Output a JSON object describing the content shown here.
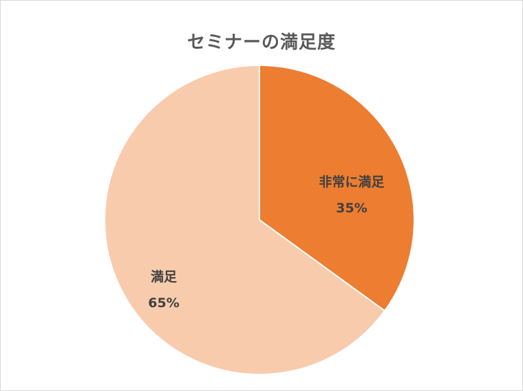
{
  "chart_data": {
    "type": "pie",
    "title": "セミナーの満足度",
    "slices": [
      {
        "label": "非常に満足",
        "value": 35,
        "percent_label": "35%",
        "color": "#ed7d31"
      },
      {
        "label": "満足",
        "value": 65,
        "percent_label": "65%",
        "color": "#f8cbad"
      }
    ],
    "start_angle_deg": 0,
    "direction": "clockwise",
    "slice_border_color": "#ffffff",
    "legend": "none"
  }
}
